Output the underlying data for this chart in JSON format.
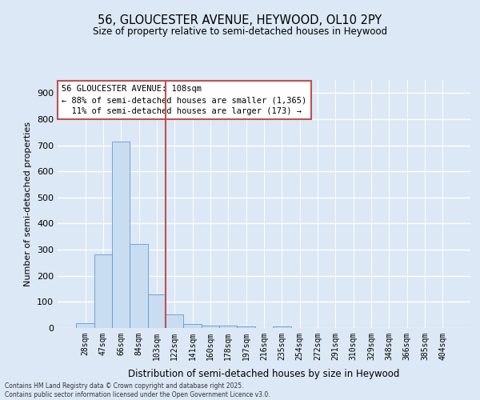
{
  "title_line1": "56, GLOUCESTER AVENUE, HEYWOOD, OL10 2PY",
  "title_line2": "Size of property relative to semi-detached houses in Heywood",
  "xlabel": "Distribution of semi-detached houses by size in Heywood",
  "ylabel": "Number of semi-detached properties",
  "bar_color": "#c9ddf0",
  "bar_edge_color": "#5b9bd5",
  "categories": [
    "28sqm",
    "47sqm",
    "66sqm",
    "84sqm",
    "103sqm",
    "122sqm",
    "141sqm",
    "160sqm",
    "178sqm",
    "197sqm",
    "216sqm",
    "235sqm",
    "254sqm",
    "272sqm",
    "291sqm",
    "310sqm",
    "329sqm",
    "348sqm",
    "366sqm",
    "385sqm",
    "404sqm"
  ],
  "values": [
    17,
    283,
    715,
    323,
    128,
    52,
    14,
    10,
    8,
    5,
    0,
    7,
    0,
    0,
    0,
    0,
    0,
    0,
    0,
    0,
    0
  ],
  "vline_index": 4.5,
  "vline_color": "#c0504d",
  "annotation_text": "56 GLOUCESTER AVENUE: 108sqm\n← 88% of semi-detached houses are smaller (1,365)\n  11% of semi-detached houses are larger (173) →",
  "annotation_box_color": "#c0504d",
  "ylim": [
    0,
    950
  ],
  "yticks": [
    0,
    100,
    200,
    300,
    400,
    500,
    600,
    700,
    800,
    900
  ],
  "footnote": "Contains HM Land Registry data © Crown copyright and database right 2025.\nContains public sector information licensed under the Open Government Licence v3.0.",
  "background_color": "#dce8f5",
  "grid_color": "#ffffff"
}
